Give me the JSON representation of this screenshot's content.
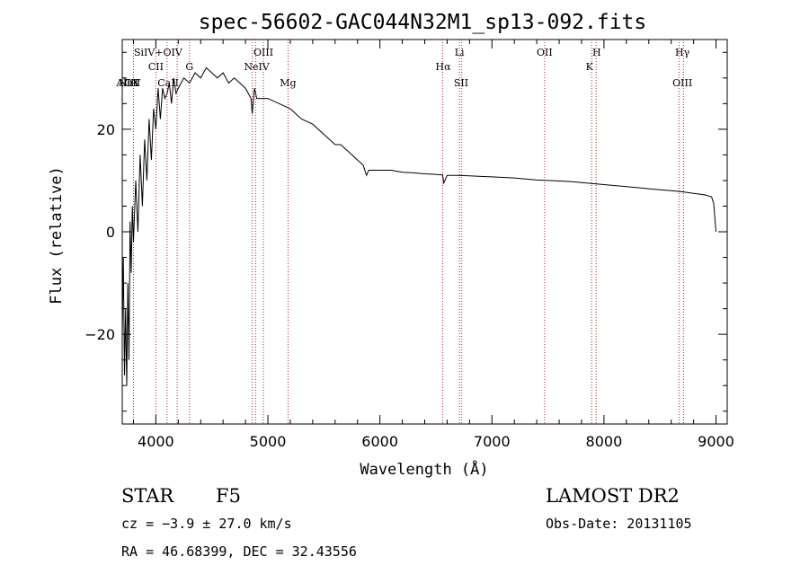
{
  "chart_data": {
    "type": "line",
    "title": "spec-56602-GAC044N32M1_sp13-092.fits",
    "xlabel": "Wavelength (Å)",
    "ylabel": "Flux (relative)",
    "xlim": [
      3700,
      9100
    ],
    "ylim": [
      -37.5,
      37.5
    ],
    "xticks": [
      4000,
      5000,
      6000,
      7000,
      8000,
      9000
    ],
    "yticks": [
      20,
      0,
      -20
    ],
    "ytick_labels": [
      "20",
      "0",
      "−20"
    ],
    "grid": false,
    "series": [
      {
        "color": "#000000",
        "x": [
          3700,
          3710,
          3720,
          3730,
          3740,
          3750,
          3760,
          3770,
          3780,
          3790,
          3800,
          3820,
          3840,
          3860,
          3880,
          3900,
          3920,
          3940,
          3960,
          3980,
          4000,
          4020,
          4040,
          4060,
          4080,
          4100,
          4120,
          4140,
          4160,
          4180,
          4200,
          4250,
          4300,
          4350,
          4400,
          4450,
          4500,
          4550,
          4600,
          4650,
          4700,
          4750,
          4800,
          4850,
          4860,
          4880,
          4900,
          5000,
          5100,
          5200,
          5300,
          5400,
          5500,
          5550,
          5600,
          5650,
          5700,
          5750,
          5800,
          5850,
          5880,
          5900,
          5950,
          6000,
          6100,
          6200,
          6300,
          6400,
          6500,
          6560,
          6570,
          6600,
          6700,
          6800,
          6900,
          7000,
          7100,
          7200,
          7300,
          7400,
          7500,
          7600,
          7700,
          7800,
          7900,
          8000,
          8100,
          8200,
          8300,
          8400,
          8500,
          8600,
          8700,
          8800,
          8900,
          8960,
          8980,
          9000
        ],
        "values": [
          -20,
          -5,
          -28,
          -15,
          -30,
          -10,
          -25,
          2,
          -8,
          5,
          -2,
          10,
          0,
          15,
          5,
          18,
          10,
          22,
          14,
          24,
          20,
          28,
          22,
          28,
          26,
          27,
          29,
          25,
          30,
          27,
          28,
          30,
          29,
          31,
          30,
          32,
          31,
          30,
          31,
          29,
          30,
          29,
          28,
          26,
          23,
          28,
          26,
          26,
          25,
          24,
          22,
          21,
          19,
          18,
          17,
          17,
          16,
          15,
          14,
          13,
          11,
          12,
          12,
          12,
          12,
          11.6,
          11.5,
          11.3,
          11.2,
          11.1,
          9.5,
          11,
          11,
          10.9,
          10.8,
          10.7,
          10.6,
          10.5,
          10.3,
          10.1,
          10,
          9.9,
          9.8,
          9.6,
          9.4,
          9.2,
          9,
          8.8,
          8.6,
          8.4,
          8.2,
          8,
          7.8,
          7.5,
          7.2,
          6.8,
          5.5,
          0
        ]
      }
    ],
    "lines": [
      {
        "label": "AlIII",
        "x": 3745,
        "row": 3
      },
      {
        "label": "NeV",
        "x": 3765,
        "row": 3
      },
      {
        "label": "OII",
        "x": 3790,
        "row": 3
      },
      {
        "label": "SiIV+OIV",
        "x": 4020,
        "row": 1
      },
      {
        "label": "CII",
        "x": 4000,
        "row": 2
      },
      {
        "label": "CaII",
        "x": 4110,
        "row": 3
      },
      {
        "label": "G",
        "x": 4300,
        "row": 2
      },
      {
        "label": "OIII",
        "x": 4960,
        "row": 1
      },
      {
        "label": "NeIV",
        "x": 4900,
        "row": 2
      },
      {
        "label": "Mg",
        "x": 5180,
        "row": 3
      },
      {
        "label": "Li",
        "x": 6710,
        "row": 1
      },
      {
        "label": "Hα",
        "x": 6565,
        "row": 2
      },
      {
        "label": "SII",
        "x": 6725,
        "row": 3
      },
      {
        "label": "OII",
        "x": 7470,
        "row": 1
      },
      {
        "label": "H",
        "x": 7935,
        "row": 1
      },
      {
        "label": "K",
        "x": 7870,
        "row": 2
      },
      {
        "label": "Hγ",
        "x": 8700,
        "row": 1
      },
      {
        "label": "OIII",
        "x": 8700,
        "row": 3
      }
    ],
    "line_positions": [
      3800,
      4000,
      4100,
      4190,
      4300,
      4860,
      4890,
      4960,
      5180,
      6560,
      6710,
      6730,
      7470,
      7890,
      7930,
      8670,
      8710
    ]
  },
  "footer": {
    "object": "STAR",
    "subclass": "F5",
    "survey": "LAMOST DR2",
    "redshift": "cz = −3.9 ± 27.0 km/s",
    "obs_date": "Obs-Date: 20131105",
    "coords": "RA =  46.68399, DEC =  32.43556"
  }
}
